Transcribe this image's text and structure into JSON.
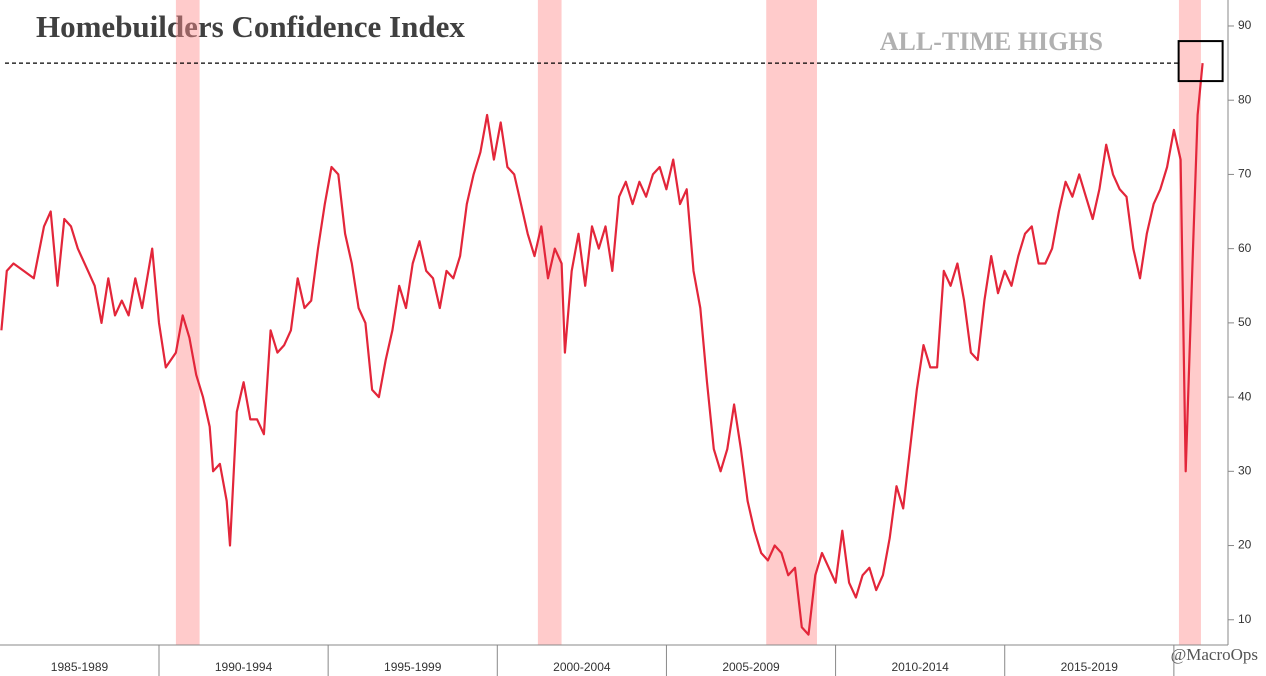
{
  "chart_data": {
    "type": "line",
    "title": "Homebuilders Confidence Index",
    "annotation": "ALL-TIME HIGHS",
    "credit": "@MacroOps",
    "reference_line": 85,
    "recessions": [
      [
        1990.5,
        1991.2
      ],
      [
        2001.2,
        2001.9
      ],
      [
        2007.95,
        2009.45
      ],
      [
        2020.15,
        2020.8
      ]
    ],
    "x_period_labels": [
      "1985-1989",
      "1990-1994",
      "1995-1999",
      "2000-2004",
      "2005-2009",
      "2010-2014",
      "2015-2019"
    ],
    "xlim": [
      1985.3,
      2021.6
    ],
    "xticks": [
      1990,
      1995,
      2000,
      2005,
      2010,
      2015,
      2020
    ],
    "ylim": [
      6.6,
      93.5
    ],
    "yticks": [
      10,
      20,
      30,
      40,
      50,
      60,
      70,
      80,
      90
    ],
    "series": [
      {
        "name": "Homebuilders Confidence Index",
        "color": "#e3263a",
        "x": [
          1985.34,
          1985.5,
          1985.7,
          1986.0,
          1986.3,
          1986.6,
          1986.8,
          1987.0,
          1987.2,
          1987.4,
          1987.6,
          1987.9,
          1988.1,
          1988.3,
          1988.5,
          1988.7,
          1988.9,
          1989.1,
          1989.3,
          1989.5,
          1989.8,
          1990.0,
          1990.2,
          1990.5,
          1990.7,
          1990.9,
          1991.1,
          1991.3,
          1991.5,
          1991.6,
          1991.8,
          1992.0,
          1992.1,
          1992.3,
          1992.5,
          1992.7,
          1992.9,
          1993.1,
          1993.3,
          1993.5,
          1993.7,
          1993.9,
          1994.1,
          1994.3,
          1994.5,
          1994.7,
          1994.9,
          1995.1,
          1995.3,
          1995.5,
          1995.7,
          1995.9,
          1996.1,
          1996.3,
          1996.5,
          1996.7,
          1996.9,
          1997.1,
          1997.3,
          1997.5,
          1997.7,
          1997.9,
          1998.1,
          1998.3,
          1998.5,
          1998.7,
          1998.9,
          1999.1,
          1999.3,
          1999.5,
          1999.7,
          1999.9,
          2000.1,
          2000.3,
          2000.5,
          2000.7,
          2000.9,
          2001.1,
          2001.3,
          2001.5,
          2001.7,
          2001.9,
          2002.0,
          2002.2,
          2002.4,
          2002.6,
          2002.8,
          2003.0,
          2003.2,
          2003.4,
          2003.6,
          2003.8,
          2004.0,
          2004.2,
          2004.4,
          2004.6,
          2004.8,
          2005.0,
          2005.2,
          2005.4,
          2005.6,
          2005.8,
          2006.0,
          2006.2,
          2006.4,
          2006.6,
          2006.8,
          2007.0,
          2007.2,
          2007.4,
          2007.6,
          2007.8,
          2008.0,
          2008.2,
          2008.4,
          2008.6,
          2008.8,
          2009.0,
          2009.2,
          2009.4,
          2009.6,
          2009.8,
          2010.0,
          2010.2,
          2010.4,
          2010.6,
          2010.8,
          2011.0,
          2011.2,
          2011.4,
          2011.6,
          2011.8,
          2012.0,
          2012.2,
          2012.4,
          2012.6,
          2012.8,
          2013.0,
          2013.2,
          2013.4,
          2013.6,
          2013.8,
          2014.0,
          2014.2,
          2014.4,
          2014.6,
          2014.8,
          2015.0,
          2015.2,
          2015.4,
          2015.6,
          2015.8,
          2016.0,
          2016.2,
          2016.4,
          2016.6,
          2016.8,
          2017.0,
          2017.2,
          2017.4,
          2017.6,
          2017.8,
          2018.0,
          2018.2,
          2018.4,
          2018.6,
          2018.8,
          2019.0,
          2019.2,
          2019.4,
          2019.6,
          2019.8,
          2020.0,
          2020.2,
          2020.35,
          2020.55,
          2020.7,
          2020.85
        ],
        "values": [
          49,
          57,
          58,
          57,
          56,
          63,
          65,
          55,
          64,
          63,
          60,
          57,
          55,
          50,
          56,
          51,
          53,
          51,
          56,
          52,
          60,
          50,
          44,
          46,
          51,
          48,
          43,
          40,
          36,
          30,
          31,
          26,
          20,
          38,
          42,
          37,
          37,
          35,
          49,
          46,
          47,
          49,
          56,
          52,
          53,
          60,
          66,
          71,
          70,
          62,
          58,
          52,
          50,
          41,
          40,
          45,
          49,
          55,
          52,
          58,
          61,
          57,
          56,
          52,
          57,
          56,
          59,
          66,
          70,
          73,
          78,
          72,
          77,
          71,
          70,
          66,
          62,
          59,
          63,
          56,
          60,
          58,
          46,
          57,
          62,
          55,
          63,
          60,
          63,
          57,
          67,
          69,
          66,
          69,
          67,
          70,
          71,
          68,
          72,
          66,
          68,
          57,
          52,
          42,
          33,
          30,
          33,
          39,
          33,
          26,
          22,
          19,
          18,
          20,
          19,
          16,
          17,
          9,
          8,
          16,
          19,
          17,
          15,
          22,
          15,
          13,
          16,
          17,
          14,
          16,
          21,
          28,
          25,
          33,
          41,
          47,
          44,
          44,
          57,
          55,
          58,
          53,
          46,
          45,
          53,
          59,
          54,
          57,
          55,
          59,
          62,
          63,
          58,
          58,
          60,
          65,
          69,
          67,
          70,
          67,
          64,
          68,
          74,
          70,
          68,
          67,
          60,
          56,
          62,
          66,
          68,
          71,
          76,
          72,
          30,
          58,
          78,
          85
        ]
      }
    ]
  }
}
